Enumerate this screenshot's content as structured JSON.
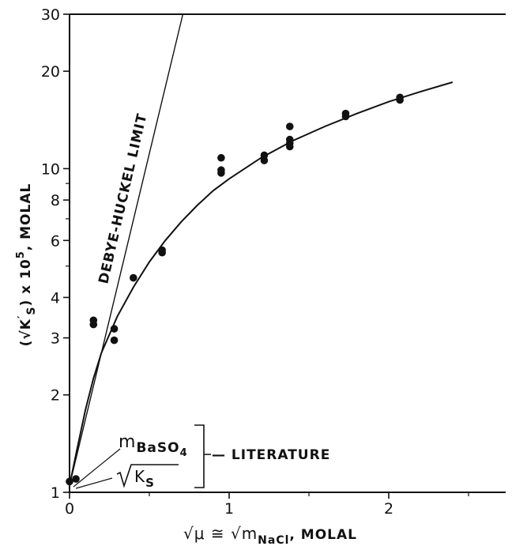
{
  "chart_data": {
    "type": "scatter",
    "xlabel": "√μ ≅ √m_NaCl , MOLAL",
    "ylabel": "(√K′_S) x 10^5 , MOLAL",
    "xlim": [
      0,
      2.8
    ],
    "ylim": [
      1,
      30
    ],
    "y_scale": "log",
    "x_ticks": [
      0,
      1,
      2
    ],
    "x_tick_labels": [
      "0",
      "1",
      "2"
    ],
    "y_ticks": [
      1,
      2,
      3,
      4,
      6,
      8,
      10,
      20,
      30
    ],
    "y_tick_labels": [
      "1",
      "2",
      "3",
      "4",
      "6",
      "8",
      "10",
      "20",
      "30"
    ],
    "grid": false,
    "series": [
      {
        "kind": "points",
        "x": [
          0.0,
          0.04,
          0.15,
          0.15,
          0.28,
          0.28,
          0.4,
          0.58,
          0.58,
          0.95,
          0.95,
          0.95,
          1.22,
          1.22,
          1.38,
          1.38,
          1.38,
          1.38,
          1.73,
          1.73,
          2.07,
          2.07
        ],
        "y": [
          1.08,
          1.1,
          3.3,
          3.4,
          3.2,
          2.95,
          4.6,
          5.5,
          5.6,
          10.8,
          9.7,
          9.9,
          11.0,
          10.6,
          13.5,
          12.0,
          12.3,
          11.7,
          14.5,
          14.8,
          16.3,
          16.6
        ]
      },
      {
        "kind": "curve",
        "x": [
          0,
          0.05,
          0.1,
          0.15,
          0.2,
          0.3,
          0.4,
          0.5,
          0.6,
          0.7,
          0.8,
          0.9,
          1.0,
          1.2,
          1.4,
          1.6,
          1.8,
          2.0,
          2.2,
          2.4
        ],
        "y": [
          1.05,
          1.38,
          1.8,
          2.25,
          2.7,
          3.5,
          4.3,
          5.15,
          6.0,
          6.85,
          7.7,
          8.55,
          9.3,
          10.8,
          12.2,
          13.5,
          14.8,
          16.1,
          17.3,
          18.5
        ]
      },
      {
        "kind": "line",
        "name": "DEBYE-HUCKEL LIMIT",
        "x": [
          0,
          0.71
        ],
        "y": [
          1.05,
          30
        ]
      }
    ],
    "annotations": {
      "limit_label": "DEBYE-HUCKEL LIMIT",
      "m_label": "m",
      "m_sub": "BaSO",
      "m_sub2": "4",
      "k_label": "K",
      "k_sub": "S",
      "literature": "— LITERATURE"
    }
  },
  "axis_text": {
    "x_sqrt_mu": "√μ ≅ √",
    "x_m": "m",
    "x_sub": "NaCl",
    "x_unit": ", MOLAL",
    "y_open": "(√K",
    "y_prime": "′",
    "y_sub": "S",
    "y_mid": ") x 10",
    "y_exp": "5",
    "y_unit": ", MOLAL"
  }
}
